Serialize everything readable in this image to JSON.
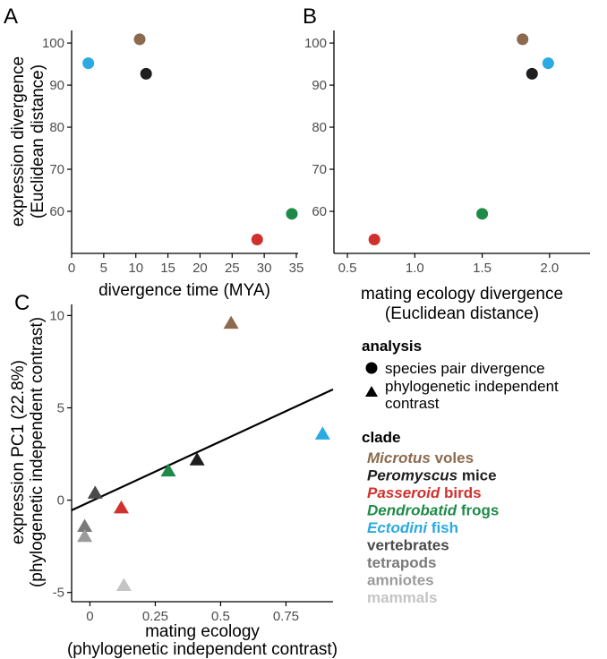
{
  "panel_labels": {
    "a": "A",
    "b": "B",
    "c": "C"
  },
  "colors": {
    "microtus": "#8C6A4E",
    "peromyscus": "#1E1E1E",
    "passeroid": "#D0312D",
    "dendrobatid": "#1E8A47",
    "ectodini": "#2BA9E1",
    "vertebrates": "#4A4A4A",
    "tetrapods": "#7A7A7A",
    "amniotes": "#9B9B9B",
    "mammals": "#C4C4C4"
  },
  "chart_data": [
    {
      "type": "scatter",
      "xlabel": "divergence time (MYA)",
      "ylabel_line1": "expression divergence",
      "ylabel_line2": "(Euclidean distance)",
      "xlim": [
        0,
        35
      ],
      "ylim": [
        50,
        103
      ],
      "xticks": [
        "0",
        "5",
        "10",
        "15",
        "20",
        "25",
        "30",
        "35"
      ],
      "yticks": [
        "60",
        "70",
        "80",
        "90",
        "100"
      ],
      "points": [
        {
          "clade": "ectodini",
          "x": 2.6,
          "y": 95.2
        },
        {
          "clade": "microtus",
          "x": 10.6,
          "y": 100.9
        },
        {
          "clade": "peromyscus",
          "x": 11.6,
          "y": 92.7
        },
        {
          "clade": "passeroid",
          "x": 28.9,
          "y": 53.3
        },
        {
          "clade": "dendrobatid",
          "x": 34.3,
          "y": 59.4
        }
      ]
    },
    {
      "type": "scatter",
      "xlabel_line1": "mating ecology divergence",
      "xlabel_line2": "(Euclidean distance)",
      "xlim": [
        0.4,
        2.3
      ],
      "ylim": [
        50,
        103
      ],
      "xticks": [
        "0.5",
        "1.0",
        "1.5",
        "2.0"
      ],
      "yticks": [
        "60",
        "70",
        "80",
        "90",
        "100"
      ],
      "points": [
        {
          "clade": "passeroid",
          "x": 0.7,
          "y": 53.3
        },
        {
          "clade": "dendrobatid",
          "x": 1.5,
          "y": 59.4
        },
        {
          "clade": "microtus",
          "x": 1.8,
          "y": 100.9
        },
        {
          "clade": "peromyscus",
          "x": 1.87,
          "y": 92.7
        },
        {
          "clade": "ectodini",
          "x": 1.99,
          "y": 95.2
        }
      ]
    },
    {
      "type": "scatter",
      "xlabel_line1": "mating ecology",
      "xlabel_line2": "(phylogenetic independent contrast)",
      "ylabel_line1": "expression PC1 (22.8%)",
      "ylabel_line2": "(phylogenetic independent contrast)",
      "xlim": [
        -0.07,
        0.93
      ],
      "ylim": [
        -5.5,
        10.6
      ],
      "xticks": [
        "0",
        "0.25",
        "0.5",
        "0.75"
      ],
      "yticks": [
        "-5",
        "0",
        "5",
        "10"
      ],
      "regression_line": {
        "x": [
          -0.07,
          0.93
        ],
        "y": [
          -0.55,
          6.0
        ]
      },
      "points": [
        {
          "clade": "microtus",
          "x": 0.54,
          "y": 9.6
        },
        {
          "clade": "ectodini",
          "x": 0.89,
          "y": 3.6
        },
        {
          "clade": "peromyscus",
          "x": 0.41,
          "y": 2.2
        },
        {
          "clade": "dendrobatid",
          "x": 0.3,
          "y": 1.6
        },
        {
          "clade": "passeroid",
          "x": 0.12,
          "y": -0.4
        },
        {
          "clade": "vertebrates",
          "x": 0.02,
          "y": 0.4
        },
        {
          "clade": "tetrapods",
          "x": -0.02,
          "y": -1.4
        },
        {
          "clade": "amniotes",
          "x": -0.02,
          "y": -1.95
        },
        {
          "clade": "mammals",
          "x": 0.13,
          "y": -4.6
        }
      ]
    }
  ],
  "legend": {
    "analysis_title": "analysis",
    "analysis_items": [
      {
        "shape": "circle",
        "label": "species pair divergence"
      },
      {
        "shape": "triangle",
        "label_line1": "phylogenetic independent",
        "label_line2": "contrast"
      }
    ],
    "clade_title": "clade",
    "clades": [
      {
        "key": "microtus",
        "italic": "Microtus",
        "rest": " voles"
      },
      {
        "key": "peromyscus",
        "italic": "Peromyscus",
        "rest": " mice"
      },
      {
        "key": "passeroid",
        "italic": "Passeroid",
        "rest": " birds"
      },
      {
        "key": "dendrobatid",
        "italic": "Dendrobatid",
        "rest": " frogs"
      },
      {
        "key": "ectodini",
        "italic": "Ectodini",
        "rest": " fish"
      },
      {
        "key": "vertebrates",
        "italic": "",
        "rest": "vertebrates"
      },
      {
        "key": "tetrapods",
        "italic": "",
        "rest": "tetrapods"
      },
      {
        "key": "amniotes",
        "italic": "",
        "rest": "amniotes"
      },
      {
        "key": "mammals",
        "italic": "",
        "rest": "mammals"
      }
    ]
  }
}
